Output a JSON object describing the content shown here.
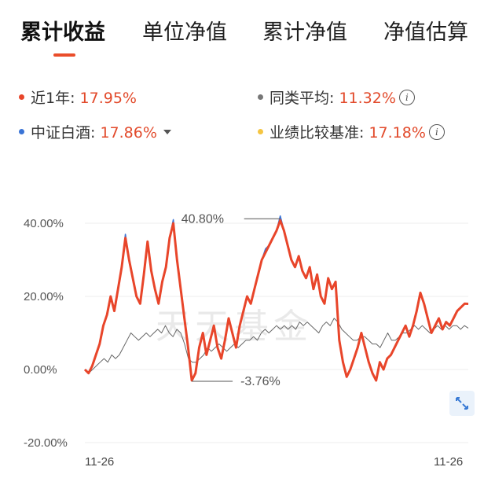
{
  "tabs": [
    {
      "label": "累计收益",
      "active": true
    },
    {
      "label": "单位净值",
      "active": false
    },
    {
      "label": "累计净值",
      "active": false
    },
    {
      "label": "净值估算",
      "active": false
    }
  ],
  "legend": {
    "fund": {
      "label": "近1年: ",
      "value": "17.95%",
      "color": "#e8452a"
    },
    "peer_avg": {
      "label": "同类平均: ",
      "value": "11.32%",
      "color": "#777777",
      "icon": "info-icon"
    },
    "index": {
      "label": "中证白酒: ",
      "value": "17.86%",
      "color": "#3a74d6",
      "icon": "caret-down-icon"
    },
    "benchmark": {
      "label": "业绩比较基准: ",
      "value": "17.18%",
      "color": "#f5c542",
      "icon": "info-icon"
    }
  },
  "chart_data": {
    "type": "line",
    "ylim": [
      -20,
      45
    ],
    "yticks": [
      "40.00%",
      "20.00%",
      "0.00%",
      "-20.00%"
    ],
    "ytick_values": [
      40,
      20,
      0,
      -20
    ],
    "xticks": [
      "11-26",
      "11-26"
    ],
    "watermark": "天天基金",
    "annotations": {
      "max": "40.80%",
      "min": "-3.76%"
    },
    "series": [
      {
        "name": "近1年",
        "color": "#e8452a",
        "values": [
          0,
          -1,
          1,
          4,
          7,
          12,
          15,
          20,
          16,
          22,
          28,
          36,
          30,
          25,
          20,
          18,
          26,
          35,
          27,
          22,
          18,
          24,
          28,
          36,
          40,
          30,
          22,
          14,
          6,
          -3,
          -1,
          6,
          10,
          4,
          8,
          12,
          6,
          3,
          8,
          14,
          10,
          6,
          12,
          16,
          20,
          18,
          22,
          26,
          30,
          32,
          34,
          36,
          38,
          40.8,
          38,
          34,
          30,
          28,
          31,
          27,
          25,
          28,
          22,
          26,
          20,
          18,
          25,
          22,
          24,
          8,
          2,
          -2,
          0,
          3,
          6,
          10,
          6,
          2,
          -1,
          -3,
          2,
          0,
          3,
          4,
          6,
          8,
          10,
          12,
          9,
          12,
          16,
          21,
          18,
          14,
          10,
          12,
          14,
          11,
          13,
          12,
          14,
          16,
          17,
          18,
          17.95
        ]
      },
      {
        "name": "同类平均",
        "color": "#666666",
        "values": [
          0,
          -1,
          0,
          1,
          2,
          3,
          2,
          4,
          3,
          4,
          6,
          8,
          10,
          9,
          8,
          9,
          10,
          9,
          10,
          11,
          10,
          12,
          10,
          9,
          11,
          10,
          7,
          3,
          2,
          2,
          3,
          4,
          6,
          5,
          6,
          7,
          6,
          5,
          6,
          7,
          6,
          7,
          8,
          8,
          9,
          8,
          10,
          11,
          10,
          11,
          12,
          11,
          12,
          11,
          12,
          11,
          13,
          12,
          13,
          12,
          11,
          10,
          12,
          13,
          12,
          14,
          13,
          11,
          10,
          9,
          8,
          8,
          9,
          9,
          8,
          7,
          7,
          6,
          8,
          10,
          8,
          8,
          9,
          10,
          10,
          11,
          12,
          11,
          12,
          11,
          10,
          11,
          12,
          11,
          12,
          11,
          12,
          12,
          11,
          12,
          11.32
        ]
      },
      {
        "name": "中证白酒",
        "color": "#3a74d6",
        "values": [
          0,
          -1,
          1,
          4,
          7,
          12,
          15,
          20,
          16,
          22,
          28,
          37,
          30,
          25,
          20,
          18,
          26,
          35,
          27,
          22,
          18,
          24,
          28,
          36,
          41,
          30,
          22,
          14,
          6,
          -3,
          -1,
          6,
          10,
          4,
          8,
          12,
          6,
          3,
          8,
          14,
          10,
          6,
          12,
          16,
          20,
          18,
          22,
          26,
          30,
          33,
          34,
          36,
          38,
          42,
          38,
          34,
          30,
          28,
          31,
          27,
          25,
          28,
          22,
          26,
          20,
          18,
          25,
          22,
          24,
          8,
          2,
          -2,
          0,
          3,
          6,
          10,
          6,
          2,
          -1,
          -3,
          2,
          0,
          3,
          4,
          6,
          8,
          10,
          12,
          9,
          12,
          16,
          21,
          18,
          14,
          10,
          12,
          14,
          11,
          13,
          12,
          14,
          16,
          17,
          18,
          17.86
        ]
      }
    ]
  }
}
